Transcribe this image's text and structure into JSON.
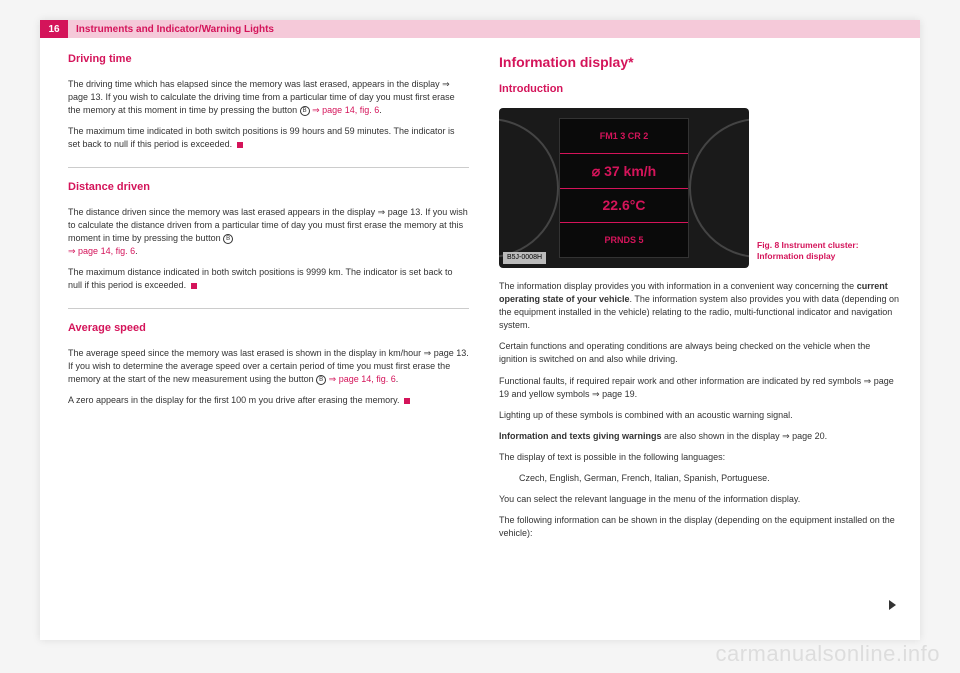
{
  "header": {
    "page_number": "16",
    "title": "Instruments and Indicator/Warning Lights"
  },
  "left_column": {
    "driving_time": {
      "heading": "Driving time",
      "p1a": "The driving time which has elapsed since the memory was last erased, appears in the display ⇒ page 13. If you wish to calculate the driving time from a particular time of day you must first erase the memory at this moment in time by pressing the button ",
      "circled": "B",
      "p1b": " ⇒ page 14, fig. 6",
      "p1c": ".",
      "p2": "The maximum time indicated in both switch positions is 99 hours and 59 minutes. The indicator is set back to null if this period is exceeded."
    },
    "distance_driven": {
      "heading": "Distance driven",
      "p1a": "The distance driven since the memory was last erased appears in the display ⇒ page 13. If you wish to calculate the distance driven from a particular time of day you must first erase the memory at this moment in time by pressing the button ",
      "circled": "B",
      "p1b": "⇒ page 14, fig. 6",
      "p1c": ".",
      "p2": "The maximum distance indicated in both switch positions is 9999 km. The indicator is set back to null if this period is exceeded."
    },
    "average_speed": {
      "heading": "Average speed",
      "p1a": "The average speed since the memory was last erased is shown in the display in km/hour ⇒ page 13. If you wish to determine the average speed over a certain period of time you must first erase the memory at the start of the new measurement using the button",
      "circled": "B",
      "p1b": " ⇒ page 14, fig. 6",
      "p1c": ".",
      "p2": "A zero appears in the display for the first 100 m you drive after erasing the memory."
    }
  },
  "right_column": {
    "main_heading": "Information display*",
    "sub_heading": "Introduction",
    "cluster": {
      "row1": "FM1 3\nCR 2",
      "row2": "⌀ 37 km/h",
      "row3": "22.6°C",
      "row4": "PRNDS 5",
      "tag": "B5J-0008H"
    },
    "fig_caption": "Fig. 8  Instrument cluster: Information display",
    "p1a": "The information display provides you with information in a convenient way concerning the ",
    "p1b": "current operating state of your vehicle",
    "p1c": ". The information system also provides you with data (depending on the equipment installed in the vehicle) relating to the radio, multi-functional indicator and navigation system.",
    "p2": "Certain functions and operating conditions are always being checked on the vehicle when the ignition is switched on and also while driving.",
    "p3": "Functional faults, if required repair work and other information are indicated by red symbols ⇒ page 19 and yellow symbols ⇒ page 19.",
    "p4": "Lighting up of these symbols is combined with an acoustic warning signal.",
    "p5a": "Information and texts giving warnings",
    "p5b": " are also shown in the display ⇒ page 20.",
    "p6": "The display of text is possible in the following languages:",
    "p7": "Czech, English, German, French, Italian, Spanish, Portuguese.",
    "p8": "You can select the relevant language in the menu of the information display.",
    "p9": "The following information can be shown in the display (depending on the equipment installed on the vehicle):"
  },
  "watermark": "carmanualsonline.info"
}
